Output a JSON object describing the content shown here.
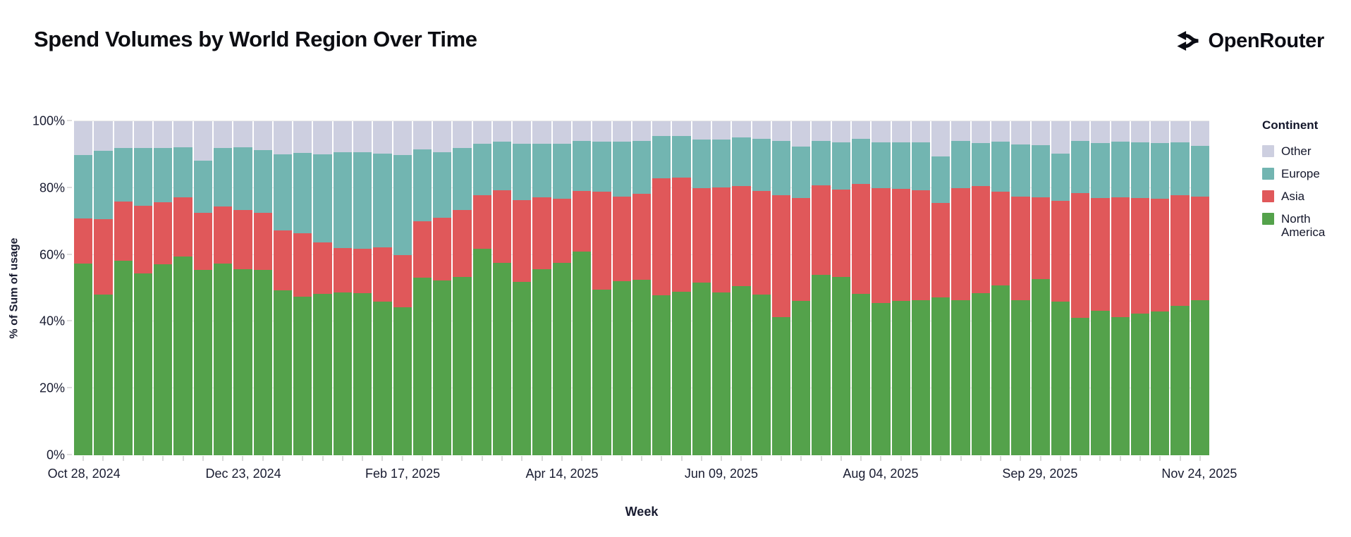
{
  "header": {
    "title": "Spend Volumes by World Region Over Time",
    "brand": "OpenRouter"
  },
  "legend": {
    "title": "Continent",
    "items": [
      {
        "label": "Other",
        "color": "#cdcfe0"
      },
      {
        "label": "Europe",
        "color": "#72b5b1"
      },
      {
        "label": "Asia",
        "color": "#e0585a"
      },
      {
        "label": "North America",
        "color": "#54a24b"
      }
    ]
  },
  "chart_data": {
    "type": "bar",
    "stacked": true,
    "percent": true,
    "title": "Spend Volumes by World Region Over Time",
    "xlabel": "Week",
    "ylabel": "% of Sum of usage",
    "ylim": [
      0,
      100
    ],
    "grid": true,
    "legend_title": "Continent",
    "legend_position": "right",
    "yticks": [
      "0%",
      "20%",
      "40%",
      "60%",
      "80%",
      "100%"
    ],
    "xticks": [
      "Oct 28, 2024",
      "Dec 23, 2024",
      "Feb 17, 2025",
      "Apr 14, 2025",
      "Jun 09, 2025",
      "Aug 04, 2025",
      "Sep 29, 2025",
      "Nov 24, 2025"
    ],
    "xtick_indices": [
      0,
      8,
      16,
      24,
      32,
      40,
      48,
      56
    ],
    "categories": [
      "Oct 28, 2024",
      "Nov 04, 2024",
      "Nov 11, 2024",
      "Nov 18, 2024",
      "Nov 25, 2024",
      "Dec 02, 2024",
      "Dec 09, 2024",
      "Dec 16, 2024",
      "Dec 23, 2024",
      "Dec 30, 2024",
      "Jan 06, 2025",
      "Jan 13, 2025",
      "Jan 20, 2025",
      "Jan 27, 2025",
      "Feb 03, 2025",
      "Feb 10, 2025",
      "Feb 17, 2025",
      "Feb 24, 2025",
      "Mar 03, 2025",
      "Mar 10, 2025",
      "Mar 17, 2025",
      "Mar 24, 2025",
      "Mar 31, 2025",
      "Apr 07, 2025",
      "Apr 14, 2025",
      "Apr 21, 2025",
      "Apr 28, 2025",
      "May 05, 2025",
      "May 12, 2025",
      "May 19, 2025",
      "May 26, 2025",
      "Jun 02, 2025",
      "Jun 09, 2025",
      "Jun 16, 2025",
      "Jun 23, 2025",
      "Jun 30, 2025",
      "Jul 07, 2025",
      "Jul 14, 2025",
      "Jul 21, 2025",
      "Jul 28, 2025",
      "Aug 04, 2025",
      "Aug 11, 2025",
      "Aug 18, 2025",
      "Aug 25, 2025",
      "Sep 01, 2025",
      "Sep 08, 2025",
      "Sep 15, 2025",
      "Sep 22, 2025",
      "Sep 29, 2025",
      "Oct 06, 2025",
      "Oct 13, 2025",
      "Oct 20, 2025",
      "Oct 27, 2025",
      "Nov 03, 2025",
      "Nov 10, 2025",
      "Nov 17, 2025",
      "Nov 24, 2025"
    ],
    "series": [
      {
        "name": "North America",
        "color": "#54a24b",
        "values": [
          57.4,
          48.1,
          58.3,
          54.4,
          57.1,
          59.5,
          55.5,
          57.4,
          55.7,
          55.5,
          49.3,
          47.5,
          48.4,
          48.8,
          48.6,
          46.1,
          44.4,
          53.2,
          52.3,
          53.4,
          61.8,
          57.6,
          51.9,
          55.8,
          57.7,
          60.9,
          49.6,
          52.1,
          52.5,
          47.8,
          48.9,
          51.7,
          48.7,
          50.7,
          48.2,
          41.4,
          46.3,
          54.1,
          53.4,
          48.4,
          45.6,
          46.2,
          46.4,
          47.2,
          46.5,
          48.6,
          50.9,
          46.5,
          52.8,
          46.1,
          41.2,
          43.2,
          41.4,
          42.5,
          43.0,
          44.7,
          46.5
        ]
      },
      {
        "name": "Asia",
        "color": "#e0585a",
        "values": [
          13.4,
          22.5,
          17.6,
          20.3,
          18.6,
          17.7,
          17.0,
          17.0,
          17.8,
          17.1,
          18.0,
          18.9,
          15.3,
          13.2,
          13.2,
          16.2,
          15.5,
          16.9,
          18.7,
          20.1,
          16.0,
          21.8,
          24.5,
          21.4,
          19.1,
          18.3,
          29.3,
          25.4,
          25.8,
          35.1,
          34.3,
          28.2,
          31.4,
          29.8,
          31.0,
          36.4,
          30.7,
          26.7,
          26.1,
          32.8,
          34.3,
          33.6,
          33.0,
          28.3,
          33.4,
          31.9,
          28.0,
          31.0,
          24.5,
          30.0,
          37.2,
          33.9,
          35.8,
          34.5,
          33.8,
          33.1,
          31.0
        ]
      },
      {
        "name": "Europe",
        "color": "#72b5b1",
        "values": [
          19.0,
          20.5,
          16.0,
          17.2,
          16.3,
          14.9,
          15.7,
          17.5,
          18.8,
          18.8,
          22.8,
          24.2,
          26.3,
          28.8,
          28.9,
          27.9,
          29.9,
          21.5,
          19.8,
          18.4,
          15.4,
          14.5,
          16.8,
          16.0,
          16.4,
          15.0,
          15.0,
          16.4,
          15.7,
          12.6,
          12.3,
          14.7,
          14.5,
          14.7,
          15.5,
          16.2,
          15.5,
          13.2,
          14.1,
          13.5,
          13.7,
          13.8,
          14.2,
          13.9,
          14.1,
          12.9,
          15.0,
          15.5,
          15.5,
          14.3,
          15.6,
          16.4,
          16.6,
          16.6,
          16.6,
          15.8,
          15.2
        ]
      },
      {
        "name": "Other",
        "color": "#cdcfe0",
        "values": [
          10.2,
          8.9,
          8.1,
          8.1,
          8.0,
          7.9,
          11.8,
          8.1,
          7.7,
          8.6,
          9.9,
          9.4,
          10.0,
          9.2,
          9.3,
          9.8,
          10.2,
          8.4,
          9.2,
          8.1,
          6.8,
          6.1,
          6.8,
          6.8,
          6.8,
          5.8,
          6.1,
          6.1,
          6.0,
          4.5,
          4.5,
          5.4,
          5.4,
          4.8,
          5.3,
          6.0,
          7.5,
          6.0,
          6.4,
          5.3,
          6.4,
          6.4,
          6.4,
          10.6,
          6.0,
          6.6,
          6.1,
          7.0,
          7.2,
          9.6,
          6.0,
          6.5,
          6.2,
          6.4,
          6.6,
          6.4,
          7.3
        ]
      }
    ]
  }
}
